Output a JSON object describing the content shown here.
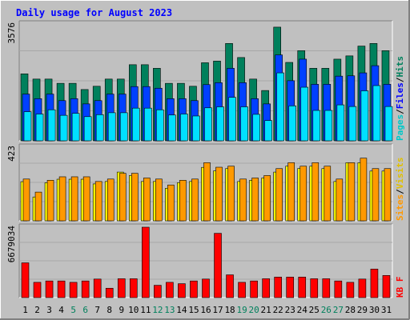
{
  "chart_data": [
    {
      "type": "bar",
      "title": "Daily usage for August 2023",
      "max_label": "3576",
      "ylim": [
        0,
        3576
      ],
      "categories": [
        "1",
        "2",
        "3",
        "4",
        "5",
        "6",
        "7",
        "8",
        "9",
        "10",
        "11",
        "12",
        "13",
        "14",
        "15",
        "16",
        "17",
        "18",
        "19",
        "20",
        "21",
        "22",
        "23",
        "24",
        "25",
        "26",
        "27",
        "28",
        "29",
        "30",
        "31"
      ],
      "weekend_days": [
        "5",
        "6",
        "12",
        "13",
        "19",
        "20",
        "26",
        "27"
      ],
      "series": [
        {
          "name": "Hits",
          "color": "#00805c",
          "values": [
            2050,
            1890,
            1890,
            1760,
            1760,
            1570,
            1670,
            1890,
            1890,
            2330,
            2330,
            2220,
            1760,
            1760,
            1670,
            2390,
            2440,
            2980,
            2550,
            1890,
            1540,
            3480,
            2400,
            2760,
            2220,
            2220,
            2500,
            2600,
            2900,
            2980,
            2760
          ]
        },
        {
          "name": "Files",
          "color": "#0040ff",
          "values": [
            1430,
            1290,
            1430,
            1230,
            1290,
            1130,
            1230,
            1430,
            1430,
            1660,
            1660,
            1610,
            1290,
            1290,
            1230,
            1720,
            1780,
            2220,
            1780,
            1290,
            1130,
            2630,
            1840,
            2500,
            1730,
            1730,
            1980,
            1990,
            2080,
            2300,
            1730
          ]
        },
        {
          "name": "Pages",
          "color": "#00e0ff",
          "values": [
            890,
            820,
            950,
            780,
            840,
            740,
            800,
            860,
            860,
            1000,
            1000,
            950,
            790,
            820,
            760,
            1010,
            1040,
            1330,
            1040,
            810,
            620,
            2080,
            1070,
            1640,
            930,
            930,
            1100,
            1050,
            1530,
            1690,
            1050
          ]
        }
      ],
      "side_labels": [
        "Pages",
        "/",
        "Files",
        "/",
        "Hits"
      ]
    },
    {
      "type": "bar",
      "max_label": "423",
      "ylim": [
        0,
        423
      ],
      "series": [
        {
          "name": "Visits",
          "color": "#ff9900",
          "values": [
            240,
            165,
            233,
            253,
            253,
            253,
            226,
            240,
            273,
            273,
            246,
            240,
            206,
            233,
            240,
            334,
            308,
            314,
            240,
            246,
            260,
            300,
            334,
            314,
            334,
            314,
            240,
            334,
            360,
            300,
            300
          ]
        },
        {
          "name": "Sites",
          "color": "#ffff00",
          "values": [
            225,
            137,
            219,
            239,
            239,
            239,
            212,
            226,
            280,
            260,
            226,
            226,
            187,
            219,
            226,
            307,
            287,
            300,
            226,
            233,
            246,
            280,
            314,
            301,
            314,
            300,
            226,
            334,
            334,
            286,
            286
          ]
        }
      ],
      "side_labels": [
        "Sites",
        "/",
        "Visits"
      ]
    },
    {
      "type": "bar",
      "max_label": "6679034",
      "ylim": [
        0,
        6679034
      ],
      "series": [
        {
          "name": "KB F",
          "color": "#ff0000",
          "values": [
            3300000,
            1450000,
            1580000,
            1580000,
            1450000,
            1580000,
            1760000,
            890000,
            1790000,
            1790000,
            6680000,
            1170000,
            1450000,
            1320000,
            1580000,
            1760000,
            6100000,
            2160000,
            1450000,
            1580000,
            1790000,
            1950000,
            1950000,
            1950000,
            1790000,
            1790000,
            1580000,
            1450000,
            1760000,
            2710000,
            2100000
          ]
        }
      ],
      "side_labels": [
        "KB F"
      ]
    }
  ],
  "colors": {
    "background": "#c0c0c0",
    "panel": "#c0c0c0",
    "title": "#0000ff",
    "weekday_label": "#000000",
    "weekend_label": "#00805c"
  }
}
